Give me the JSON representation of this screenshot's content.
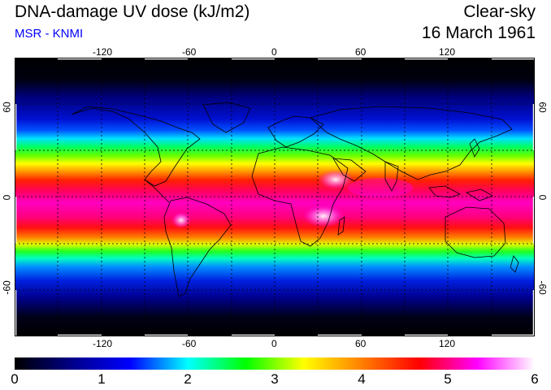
{
  "header": {
    "title": "DNA-damage UV dose (kJ/m2)",
    "subtitle": "MSR - KNMI",
    "sky": "Clear-sky",
    "date": "16 March 1961"
  },
  "map": {
    "lon_ticks": [
      "-120",
      "-60",
      "0",
      "60",
      "120"
    ],
    "lat_ticks_left": [
      "60",
      "0",
      "-60"
    ],
    "lat_ticks_right": [
      "60",
      "0",
      "-60"
    ],
    "lat_ticks_right_display": [
      "09",
      "0",
      "09-"
    ]
  },
  "colorbar": {
    "labels": [
      "0",
      "1",
      "2",
      "3",
      "4",
      "5",
      "6"
    ],
    "min": 0,
    "max": 6,
    "stops": [
      "#000000",
      "#00008a",
      "#0000ff",
      "#00ffff",
      "#00ff00",
      "#ffff00",
      "#ff8000",
      "#ff0000",
      "#ff00ff",
      "#ffffff"
    ]
  }
}
